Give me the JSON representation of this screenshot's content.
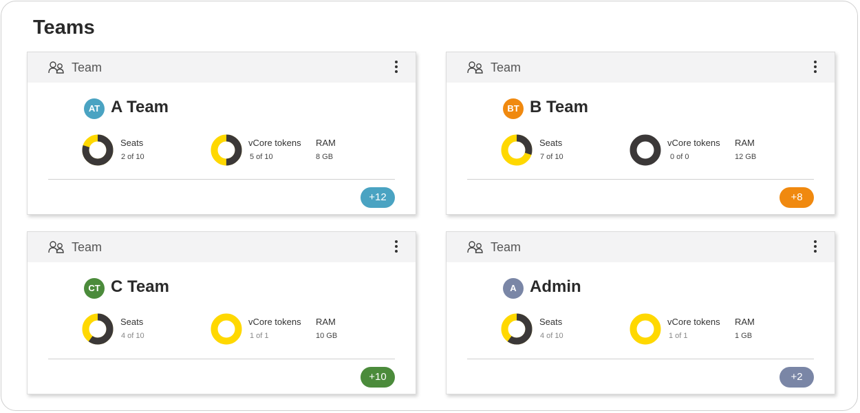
{
  "page": {
    "title": "Teams"
  },
  "colors": {
    "gold": "#FFD800",
    "dark": "#3b3838",
    "header_bg": "#f3f3f4"
  },
  "cards": [
    {
      "header_label": "Team",
      "avatar": {
        "initials": "AT",
        "color": "#4aa3c2"
      },
      "name": "A Team",
      "seats": {
        "label": "Seats",
        "value": "2 of 10",
        "used": 2,
        "total": 10
      },
      "vcore": {
        "label": "vCore tokens",
        "value": "5 of 10",
        "used": 5,
        "total": 10
      },
      "ram": {
        "label": "RAM",
        "value": "8 GB"
      },
      "more": {
        "label": "+12",
        "color": "#4aa3c2"
      }
    },
    {
      "header_label": "Team",
      "avatar": {
        "initials": "BT",
        "color": "#f0890f"
      },
      "name": "B Team",
      "seats": {
        "label": "Seats",
        "value": "7 of 10",
        "used": 7,
        "total": 10
      },
      "vcore": {
        "label": "vCore tokens",
        "value": "0 of 0",
        "used": 0,
        "total": 0
      },
      "ram": {
        "label": "RAM",
        "value": "12 GB"
      },
      "more": {
        "label": "+8",
        "color": "#f0890f"
      }
    },
    {
      "header_label": "Team",
      "avatar": {
        "initials": "CT",
        "color": "#4b8b3b"
      },
      "name": "C Team",
      "seats": {
        "label": "Seats",
        "value": "4 of 10",
        "used": 4,
        "total": 10
      },
      "vcore": {
        "label": "vCore tokens",
        "value": "1 of 1",
        "used": 1,
        "total": 1
      },
      "ram": {
        "label": "RAM",
        "value": "10 GB"
      },
      "more": {
        "label": "+10",
        "color": "#4b8b3b"
      }
    },
    {
      "header_label": "Team",
      "avatar": {
        "initials": "A",
        "color": "#7a86a6"
      },
      "name": "Admin",
      "seats": {
        "label": "Seats",
        "value": "4 of 10",
        "used": 4,
        "total": 10
      },
      "vcore": {
        "label": "vCore tokens",
        "value": "1 of 1",
        "used": 1,
        "total": 1
      },
      "ram": {
        "label": "RAM",
        "value": "1 GB"
      },
      "more": {
        "label": "+2",
        "color": "#7a86a6"
      }
    }
  ]
}
